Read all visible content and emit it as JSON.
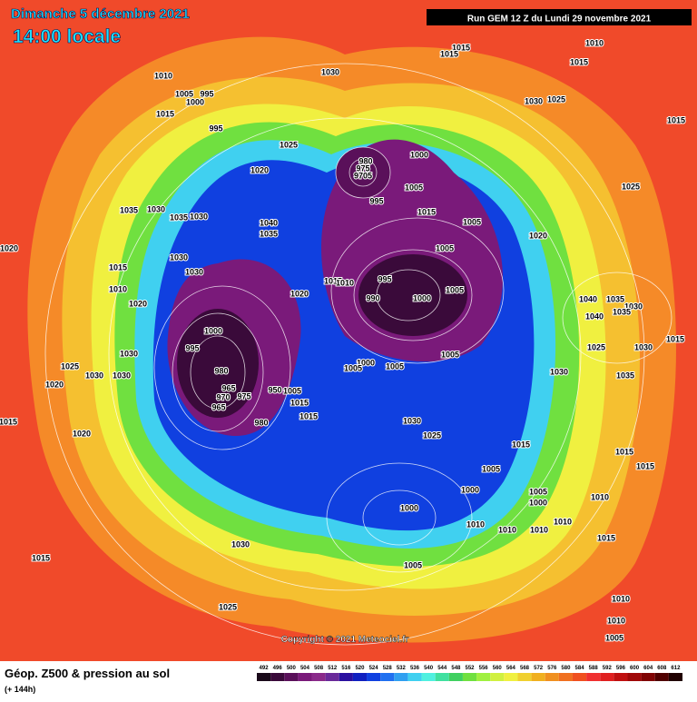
{
  "header": {
    "date": "Dimanche 5 décembre 2021",
    "time": "14:00 locale",
    "run": "Run GEM 12 Z du Lundi 29 novembre 2021"
  },
  "copyright": "Copyright © 2021 Meteociel.fr",
  "footer": {
    "title": "Géop. Z500 & pression au sol",
    "lead": "(+ 144h)"
  },
  "scale": {
    "labels": [
      "492",
      "496",
      "500",
      "504",
      "508",
      "512",
      "516",
      "520",
      "524",
      "528",
      "532",
      "536",
      "540",
      "544",
      "548",
      "552",
      "556",
      "560",
      "564",
      "568",
      "572",
      "576",
      "580",
      "584",
      "588",
      "592",
      "596",
      "600",
      "604",
      "608",
      "612"
    ],
    "colors": [
      "#1a0a1a",
      "#3a0a3a",
      "#5a105a",
      "#7a1a7a",
      "#8a2a8a",
      "#6a2a9a",
      "#2a10a0",
      "#1020c0",
      "#1040e0",
      "#2070f0",
      "#30a0f0",
      "#40d0f0",
      "#50f0e0",
      "#40e0a0",
      "#40d060",
      "#70e040",
      "#a0f040",
      "#d0f040",
      "#f0f040",
      "#f0d030",
      "#f0b020",
      "#f09020",
      "#f07020",
      "#f05020",
      "#f03030",
      "#e02020",
      "#c01010",
      "#a00808",
      "#800404",
      "#500000",
      "#200000"
    ]
  },
  "pressure_labels": [
    "1010",
    "1005",
    "995",
    "1000",
    "1015",
    "1030",
    "1015",
    "1015",
    "1010",
    "1015",
    "995",
    "1025",
    "980",
    "975",
    "9705",
    "1000",
    "1005",
    "995",
    "1020",
    "1030",
    "1025",
    "1015",
    "1025",
    "1035",
    "1030",
    "1035",
    "1030",
    "1040",
    "1035",
    "1015",
    "1005",
    "1020",
    "1005",
    "1020",
    "1030",
    "1030",
    "1015",
    "1010",
    "1020",
    "1015",
    "1010",
    "1020",
    "995",
    "990",
    "1000",
    "1005",
    "1040",
    "1035",
    "1030",
    "1040",
    "1035",
    "1000",
    "995",
    "1030",
    "1025",
    "1030",
    "1030",
    "1020",
    "1025",
    "1030",
    "1015",
    "1005",
    "1000",
    "1005",
    "1005",
    "1030",
    "1035",
    "980",
    "965",
    "970",
    "975",
    "965",
    "950",
    "1005",
    "1015",
    "1015",
    "980",
    "1015",
    "1030",
    "1025",
    "1020",
    "1015",
    "1005",
    "1015",
    "1015",
    "1000",
    "1005",
    "1000",
    "1010",
    "1000",
    "1010",
    "1010",
    "1010",
    "1010",
    "1015",
    "1030",
    "1015",
    "1005",
    "1010",
    "1025",
    "1010",
    "1005"
  ]
}
